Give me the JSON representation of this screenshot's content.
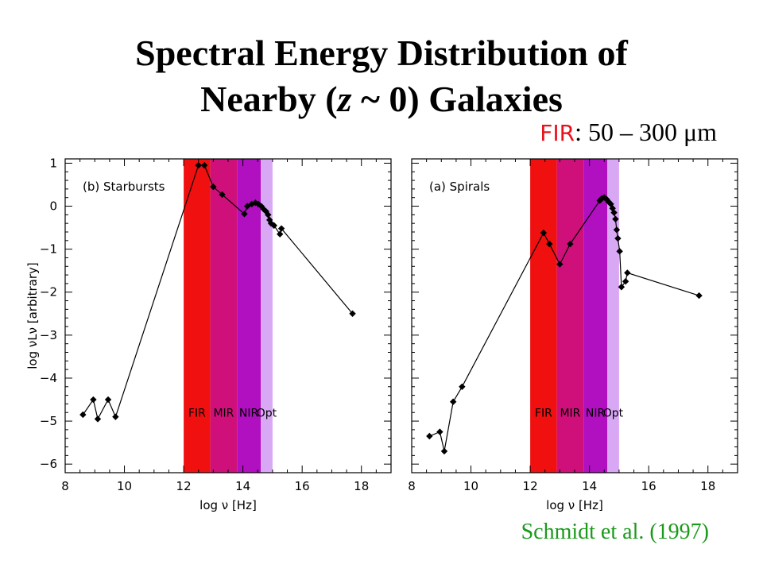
{
  "title": {
    "line1": "Spectral Energy Distribution of",
    "line2_prefix": "Nearby (",
    "line2_z": "z",
    "line2_suffix": " ~ 0) Galaxies"
  },
  "fir_note": {
    "label": "FIR",
    "range": ": 50 – 300 μm"
  },
  "citation": "Schmidt et al. (1997)",
  "colors": {
    "fir": "#f01010",
    "mir": "#d0107a",
    "nir": "#b010c0",
    "opt": "#d8a8f4",
    "citation": "#1a9a1a",
    "fir_note": "#e8121b"
  },
  "chart_data": [
    {
      "type": "line",
      "panel_label": "(b) Starbursts",
      "xlabel": "log ν [Hz]",
      "ylabel": "log νLν [arbitrary]",
      "xlim": [
        8,
        19
      ],
      "ylim": [
        -6.2,
        1.1
      ],
      "xticks": [
        8,
        10,
        12,
        14,
        16,
        18
      ],
      "yticks": [
        1,
        0,
        -1,
        -2,
        -3,
        -4,
        -5,
        -6
      ],
      "bands": [
        {
          "label": "FIR",
          "from": 12.0,
          "to": 12.9
        },
        {
          "label": "MIR",
          "from": 12.9,
          "to": 13.8
        },
        {
          "label": "NIR",
          "from": 13.8,
          "to": 14.6
        },
        {
          "label": "Opt",
          "from": 14.6,
          "to": 15.0
        }
      ],
      "series": [
        {
          "x": [
            8.6,
            8.95,
            9.1,
            9.45,
            9.7,
            12.5,
            12.7,
            13.0,
            13.3,
            14.05,
            14.15,
            14.3,
            14.42,
            14.52,
            14.62,
            14.7,
            14.78,
            14.85,
            14.9,
            14.95,
            15.05,
            15.25,
            15.3,
            17.7
          ],
          "y": [
            -4.85,
            -4.5,
            -4.95,
            -4.5,
            -4.9,
            0.95,
            0.95,
            0.45,
            0.27,
            -0.18,
            0.0,
            0.05,
            0.08,
            0.05,
            0.0,
            -0.07,
            -0.12,
            -0.2,
            -0.32,
            -0.4,
            -0.45,
            -0.65,
            -0.52,
            -2.5
          ]
        }
      ]
    },
    {
      "type": "line",
      "panel_label": "(a) Spirals",
      "xlabel": "log ν [Hz]",
      "ylabel": "",
      "xlim": [
        8,
        19
      ],
      "ylim": [
        -6.2,
        1.1
      ],
      "xticks": [
        8,
        10,
        12,
        14,
        16,
        18
      ],
      "yticks": [],
      "bands": [
        {
          "label": "FIR",
          "from": 12.0,
          "to": 12.9
        },
        {
          "label": "MIR",
          "from": 12.9,
          "to": 13.8
        },
        {
          "label": "NIR",
          "from": 13.8,
          "to": 14.6
        },
        {
          "label": "Opt",
          "from": 14.6,
          "to": 15.0
        }
      ],
      "series": [
        {
          "x": [
            8.6,
            8.95,
            9.1,
            9.4,
            9.7,
            12.45,
            12.65,
            13.0,
            13.35,
            14.35,
            14.42,
            14.5,
            14.58,
            14.65,
            14.72,
            14.78,
            14.83,
            14.88,
            14.92,
            14.96,
            15.02,
            15.08,
            15.22,
            15.28,
            17.7
          ],
          "y": [
            -5.35,
            -5.25,
            -5.7,
            -4.55,
            -4.2,
            -0.62,
            -0.88,
            -1.35,
            -0.88,
            0.13,
            0.18,
            0.2,
            0.16,
            0.1,
            0.05,
            -0.05,
            -0.15,
            -0.3,
            -0.55,
            -0.75,
            -1.05,
            -1.88,
            -1.75,
            -1.55,
            -2.08
          ]
        }
      ]
    }
  ]
}
